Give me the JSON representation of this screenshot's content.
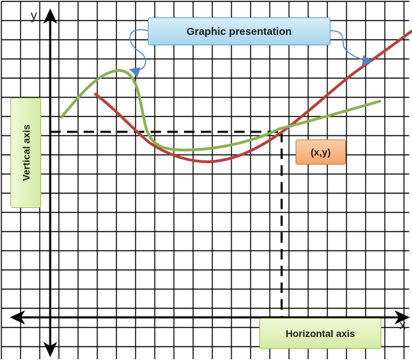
{
  "title": "Graphic presentation",
  "point_label": "(x,y)",
  "vertical_axis_label": "Vertical axis",
  "horizontal_axis_label": "Horizontal axis",
  "x_axis_letter": "x",
  "y_axis_letter": "y",
  "colors": {
    "grid": "#000000",
    "red_curve": "#b5403d",
    "green_curve": "#8db053",
    "connector": "#4f87c4"
  }
}
